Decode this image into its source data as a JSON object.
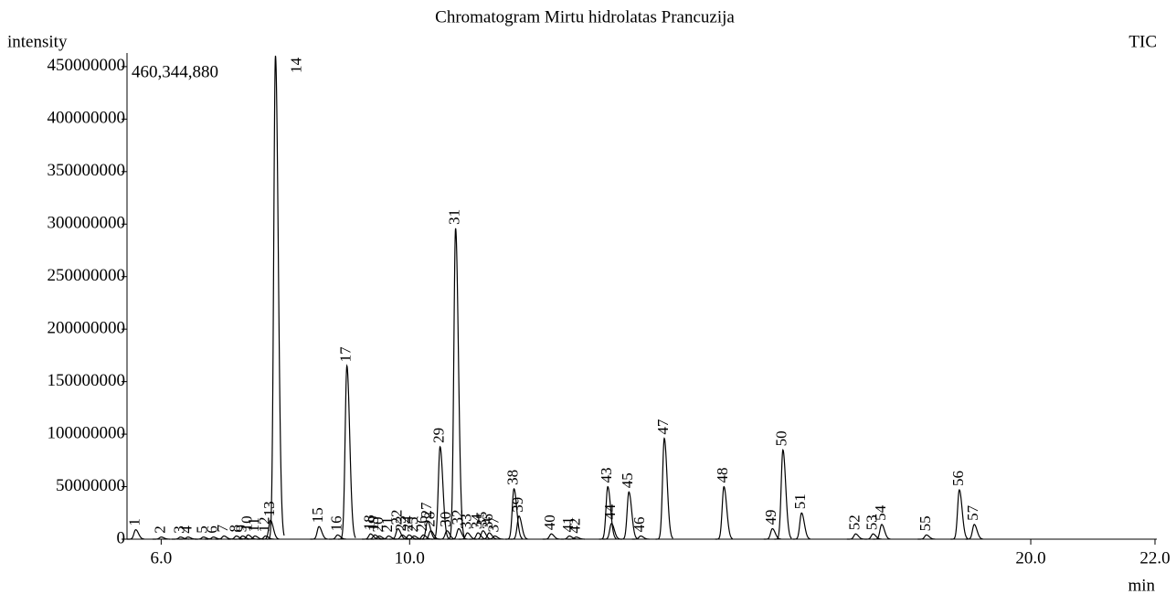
{
  "chart_data": {
    "type": "chromatogram",
    "title": "Chromatogram Mirtu hidrolatas Prancuzija",
    "y_label": "intensity",
    "x_label": "min",
    "trace_label": "TIC",
    "max_label": "460,344,880",
    "color": "#000000",
    "xlim": [
      5.45,
      22.0
    ],
    "ylim": [
      0,
      460344880
    ],
    "xticks": [
      {
        "value": 6,
        "label": "6.0"
      },
      {
        "value": 10,
        "label": "10.0"
      },
      {
        "value": 20,
        "label": "20.0"
      },
      {
        "value": 22,
        "label": "22.0"
      }
    ],
    "yticks": [
      0,
      50000000,
      100000000,
      150000000,
      200000000,
      250000000,
      300000000,
      350000000,
      400000000,
      450000000
    ],
    "peaks": {
      "labels": [
        "1",
        "2",
        "3",
        "4",
        "5",
        "6",
        "7",
        "8",
        "9",
        "10",
        "11",
        "12",
        "13",
        "14",
        "15",
        "16",
        "17",
        "18",
        "19",
        "20",
        "21",
        "22",
        "23",
        "24",
        "25",
        "26",
        "27",
        "28",
        "29",
        "30",
        "31",
        "32",
        "33",
        "34",
        "35",
        "36",
        "37",
        "38",
        "39",
        "40",
        "41",
        "42",
        "43",
        "44",
        "45",
        "46",
        "47",
        "48",
        "49",
        "50",
        "51",
        "52",
        "53",
        "54",
        "55",
        "56",
        "57"
      ],
      "x": [
        5.59,
        6.0,
        6.31,
        6.43,
        6.68,
        6.84,
        7.01,
        7.21,
        7.31,
        7.4,
        7.51,
        7.68,
        7.76,
        7.84,
        8.54,
        8.84,
        8.99,
        9.37,
        9.44,
        9.51,
        9.66,
        9.81,
        9.88,
        9.99,
        10.07,
        10.22,
        10.29,
        10.34,
        10.49,
        10.6,
        10.74,
        10.79,
        10.93,
        11.1,
        11.18,
        11.28,
        11.37,
        11.68,
        11.76,
        12.28,
        12.57,
        12.68,
        13.19,
        13.25,
        13.53,
        13.72,
        14.1,
        15.06,
        15.84,
        16.01,
        16.31,
        17.18,
        17.46,
        17.6,
        18.32,
        18.85,
        19.09
      ],
      "values": [
        9000000,
        2000000,
        2000000,
        2000000,
        2000000,
        2000000,
        3000000,
        3000000,
        3000000,
        4000000,
        3000000,
        3000000,
        18000000,
        460344880,
        12000000,
        4000000,
        165000000,
        5000000,
        4000000,
        3000000,
        3000000,
        10000000,
        4000000,
        4000000,
        3000000,
        4000000,
        17000000,
        8000000,
        88000000,
        8000000,
        296000000,
        10000000,
        6000000,
        6000000,
        8000000,
        6000000,
        3000000,
        48000000,
        22000000,
        5000000,
        3000000,
        2000000,
        50000000,
        15000000,
        45000000,
        3000000,
        96000000,
        50000000,
        10000000,
        85000000,
        25000000,
        5000000,
        5000000,
        14000000,
        4000000,
        47000000,
        14000000
      ]
    }
  }
}
